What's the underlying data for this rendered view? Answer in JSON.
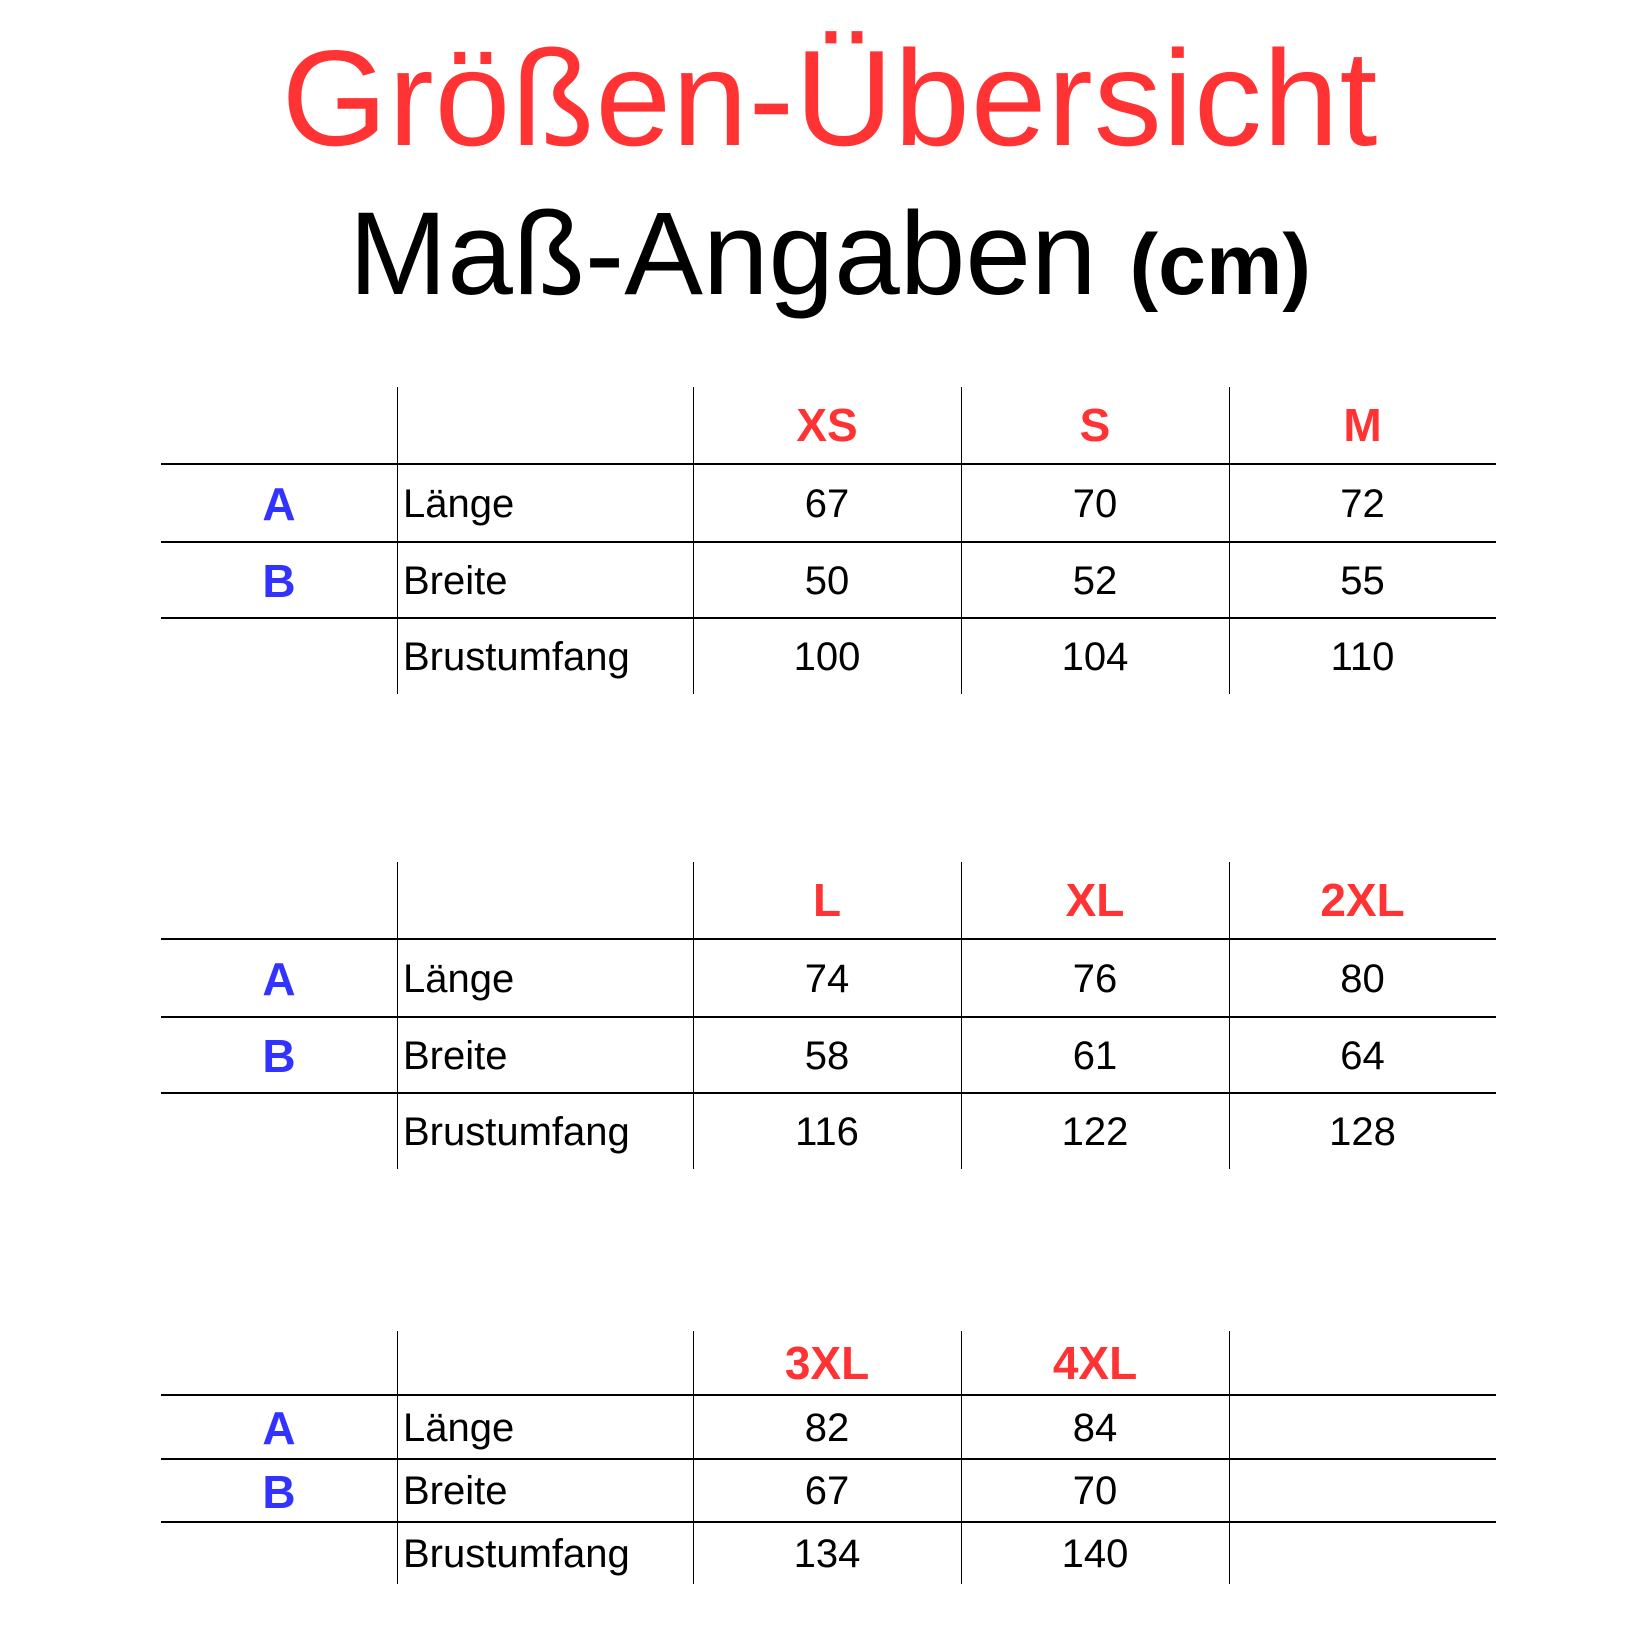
{
  "title": "Größen-Übersicht",
  "subtitle": {
    "main": "Maß-Angaben",
    "unit": "(cm)"
  },
  "colors": {
    "title": "#ff3333",
    "size_header": "#ff3333",
    "marker": "#3333ff",
    "text": "#000000"
  },
  "tables": [
    {
      "sizes": [
        "XS",
        "S",
        "M"
      ],
      "rows": [
        {
          "marker": "A",
          "label": "Länge",
          "values": [
            "67",
            "70",
            "72"
          ]
        },
        {
          "marker": "B",
          "label": "Breite",
          "values": [
            "50",
            "52",
            "55"
          ]
        },
        {
          "marker": "",
          "label": "Brustumfang",
          "values": [
            "100",
            "104",
            "110"
          ]
        }
      ]
    },
    {
      "sizes": [
        "L",
        "XL",
        "2XL"
      ],
      "rows": [
        {
          "marker": "A",
          "label": "Länge",
          "values": [
            "74",
            "76",
            "80"
          ]
        },
        {
          "marker": "B",
          "label": "Breite",
          "values": [
            "58",
            "61",
            "64"
          ]
        },
        {
          "marker": "",
          "label": "Brustumfang",
          "values": [
            "116",
            "122",
            "128"
          ]
        }
      ]
    },
    {
      "sizes": [
        "3XL",
        "4XL",
        ""
      ],
      "rows": [
        {
          "marker": "A",
          "label": "Länge",
          "values": [
            "82",
            "84",
            ""
          ]
        },
        {
          "marker": "B",
          "label": "Breite",
          "values": [
            "67",
            "70",
            ""
          ]
        },
        {
          "marker": "",
          "label": "Brustumfang",
          "values": [
            "134",
            "140",
            ""
          ]
        }
      ]
    }
  ]
}
